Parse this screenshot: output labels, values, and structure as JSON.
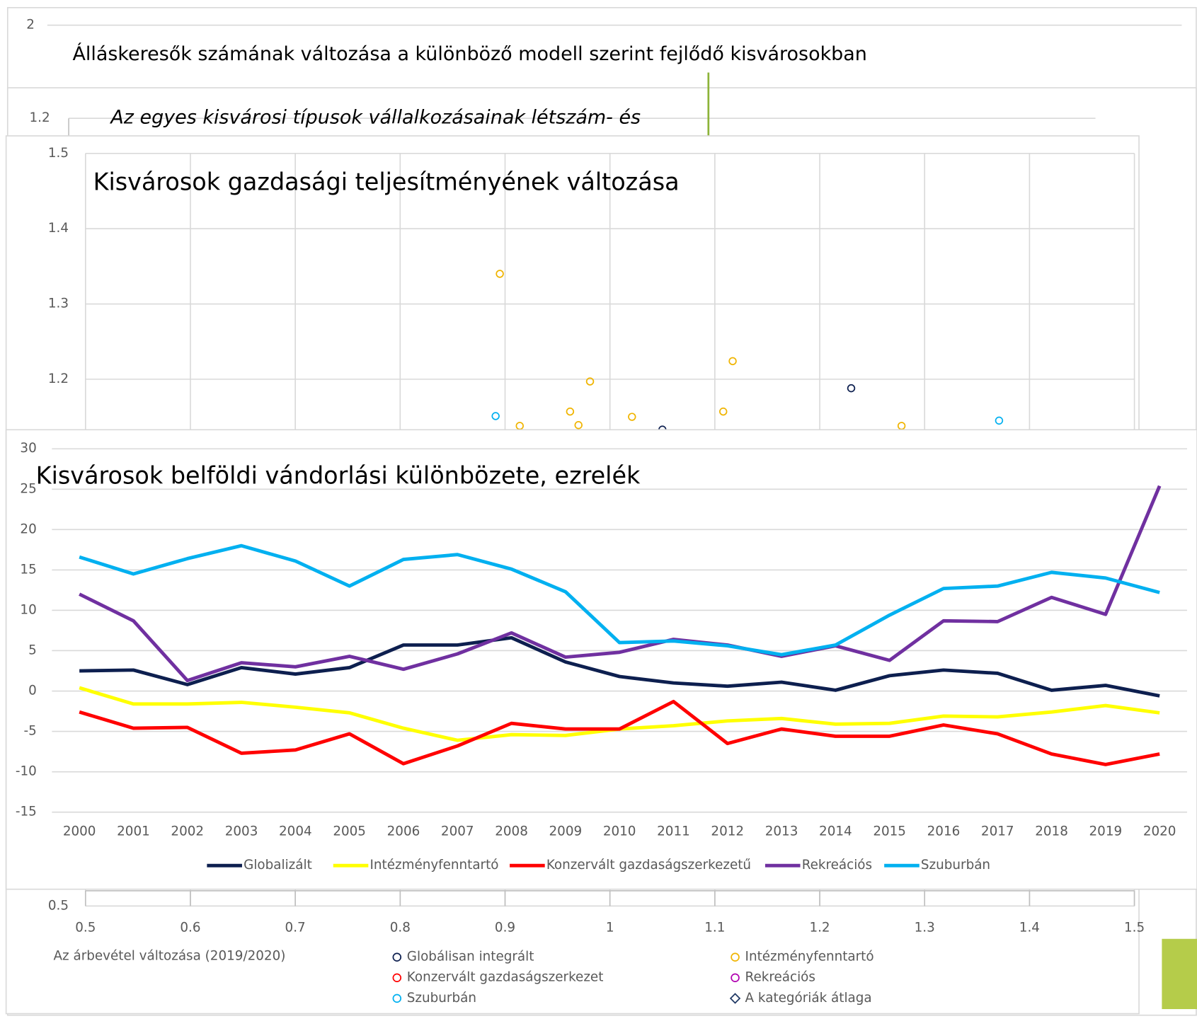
{
  "chart_data": [
    {
      "type": "line",
      "title": "Álláskeresők számának változása a különböző modell szerint fejlődő kisvárosokban",
      "yticks": [
        2
      ]
    },
    {
      "type": "line",
      "title": "Az egyes kisvárosi típusok vállalkozásainak létszám- és",
      "title_style": "italic",
      "yticks": [
        1.2
      ]
    },
    {
      "type": "scatter",
      "title": "Kisvárosok gazdasági teljesítményének változása",
      "x_label": "Az árbevétel változása (2019/2020)",
      "xlim": [
        0.5,
        1.5
      ],
      "xticks": [
        0.5,
        0.6,
        0.7,
        0.8,
        0.9,
        1,
        1.1,
        1.2,
        1.3,
        1.4,
        1.5
      ],
      "ylim": [
        0.5,
        1.5
      ],
      "yticks": [
        0.5,
        1.2,
        1.3,
        1.4,
        1.5
      ],
      "grid": true,
      "legend": "bottom",
      "series": [
        {
          "name": "Globálisan integrált",
          "color": "#0d1f4f",
          "x": [
            1.23,
            1.05
          ],
          "values": [
            1.188,
            1.133
          ]
        },
        {
          "name": "Intézményfenntartó",
          "color": "#f0b400",
          "x": [
            0.895,
            1.117,
            0.981,
            0.962,
            1.108,
            1.021,
            0.914,
            0.97,
            1.278
          ],
          "values": [
            1.34,
            1.224,
            1.197,
            1.157,
            1.157,
            1.15,
            1.138,
            1.139,
            1.138
          ]
        },
        {
          "name": "Konzervált gazdaságszerkezet",
          "color": "#ff0000",
          "x": [],
          "values": []
        },
        {
          "name": "Rekreációs",
          "color": "#b000b0",
          "x": [],
          "values": []
        },
        {
          "name": "Szuburbán",
          "color": "#00b0f0",
          "x": [
            0.891,
            1.371
          ],
          "values": [
            1.151,
            1.145
          ]
        },
        {
          "name": "A kategóriák átlaga",
          "color": "#1f3864",
          "marker": "diamond",
          "x": [],
          "values": []
        }
      ]
    },
    {
      "type": "line",
      "title": "Kisvárosok belföldi vándorlási különbözete, ezrelék",
      "categories": [
        "2000",
        "2001",
        "2002",
        "2003",
        "2004",
        "2005",
        "2006",
        "2007",
        "2008",
        "2009",
        "2010",
        "2011",
        "2012",
        "2013",
        "2014",
        "2015",
        "2016",
        "2017",
        "2018",
        "2019",
        "2020"
      ],
      "ylim": [
        -15,
        30
      ],
      "yticks": [
        -15,
        -10,
        -5,
        0,
        5,
        10,
        15,
        20,
        25,
        30
      ],
      "grid": true,
      "legend": "bottom",
      "series": [
        {
          "name": "Globalizált",
          "color": "#0d1f4f",
          "values": [
            2.5,
            2.6,
            0.8,
            2.9,
            2.1,
            2.9,
            5.7,
            5.7,
            6.6,
            3.6,
            1.8,
            1.0,
            0.6,
            1.1,
            0.1,
            1.9,
            2.6,
            2.2,
            0.1,
            0.7,
            -0.6
          ]
        },
        {
          "name": "Intézményfenntartó",
          "color": "#ffff00",
          "values": [
            0.4,
            -1.6,
            -1.6,
            -1.4,
            -2.0,
            -2.7,
            -4.6,
            -6.1,
            -5.4,
            -5.5,
            -4.7,
            -4.3,
            -3.7,
            -3.4,
            -4.1,
            -4.0,
            -3.1,
            -3.2,
            -2.6,
            -1.8,
            -2.7
          ]
        },
        {
          "name": "Konzervált gazdaságszerkezetű",
          "color": "#ff0000",
          "values": [
            -2.6,
            -4.6,
            -4.5,
            -7.7,
            -7.3,
            -5.3,
            -9.0,
            -6.8,
            -4.0,
            -4.7,
            -4.7,
            -1.3,
            -6.5,
            -4.7,
            -5.6,
            -5.6,
            -4.2,
            -5.3,
            -7.8,
            -9.1,
            -7.8
          ]
        },
        {
          "name": "Rekreációs",
          "color": "#7030a0",
          "values": [
            12.0,
            8.7,
            1.3,
            3.5,
            3.0,
            4.3,
            2.7,
            4.6,
            7.2,
            4.2,
            4.8,
            6.4,
            5.7,
            4.3,
            5.6,
            3.8,
            8.7,
            8.6,
            11.6,
            9.5,
            25.4
          ]
        },
        {
          "name": "Szuburbán",
          "color": "#00b0f0",
          "values": [
            16.6,
            14.5,
            16.4,
            18.0,
            16.1,
            13.0,
            16.3,
            16.9,
            15.1,
            12.3,
            6.0,
            6.2,
            5.6,
            4.5,
            5.7,
            9.4,
            12.7,
            13.0,
            14.7,
            14.0,
            12.2
          ]
        }
      ]
    }
  ]
}
